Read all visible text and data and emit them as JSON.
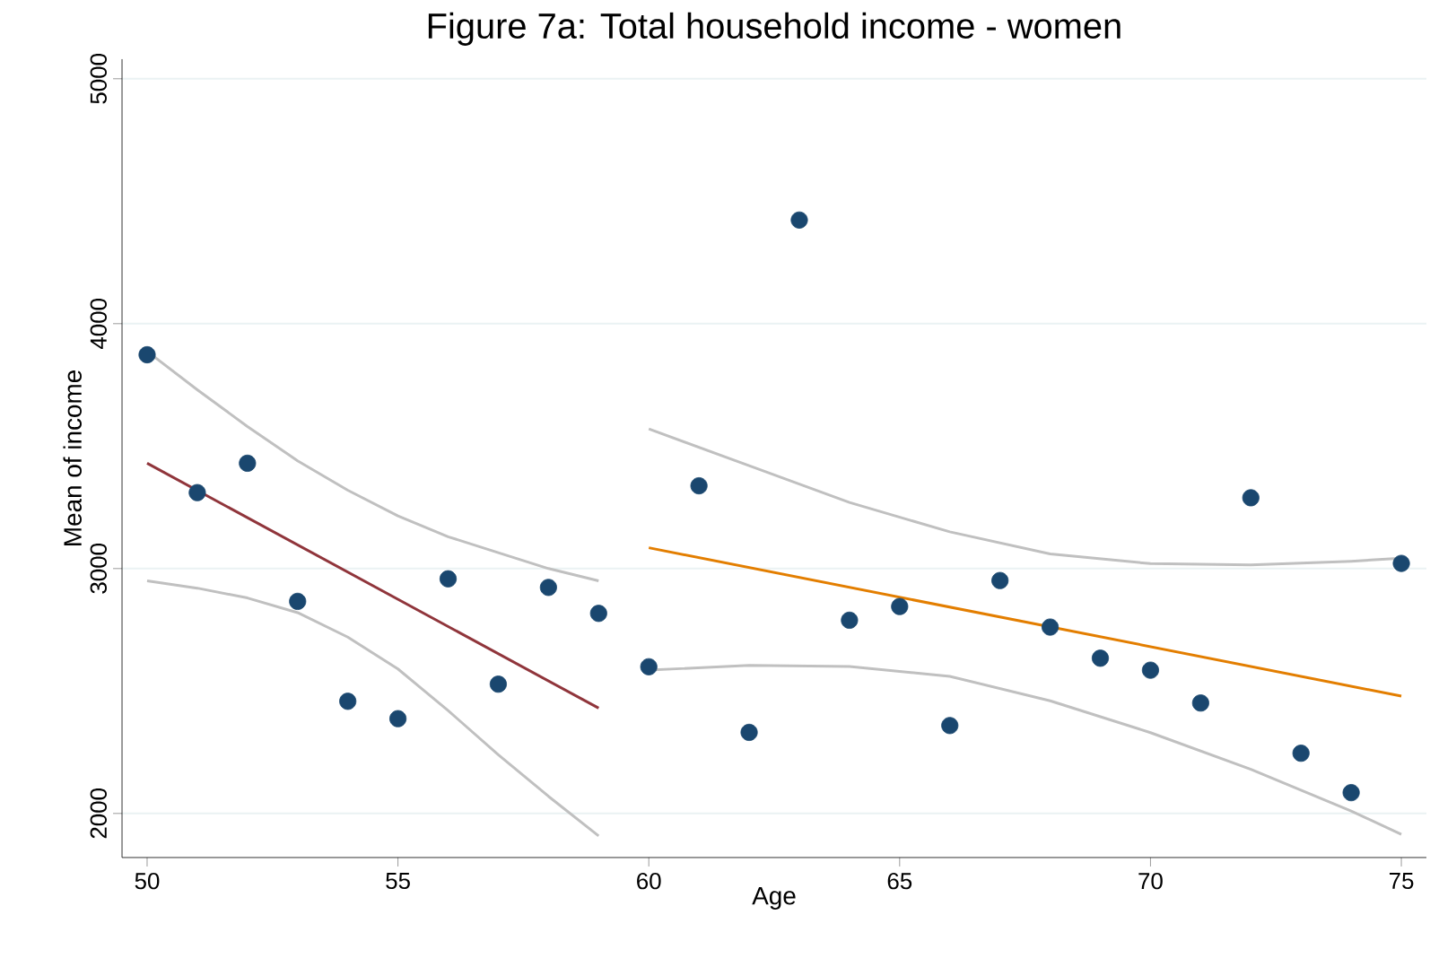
{
  "chart_data": {
    "type": "scatter",
    "title": "Figure 7a: Total household income - women",
    "xlabel": "Age",
    "ylabel": "Mean of income",
    "xlim": [
      49.5,
      75.5
    ],
    "xticks": [
      50,
      55,
      60,
      65,
      70,
      75
    ],
    "ylim": [
      1820,
      5080
    ],
    "yticks": [
      2000,
      3000,
      4000,
      5000
    ],
    "grid": "y",
    "series": [
      {
        "type": "line",
        "color": "#c0c0c0",
        "x": [
          50,
          51,
          52,
          53,
          54,
          55,
          56,
          57,
          58,
          59
        ],
        "values": [
          3887,
          3730,
          3580,
          3440,
          3320,
          3215,
          3130,
          3065,
          3000,
          2950
        ]
      },
      {
        "type": "line",
        "color": "#c0c0c0",
        "x": [
          50,
          51,
          52,
          53,
          54,
          55,
          56,
          57,
          58,
          59
        ],
        "values": [
          2950,
          2920,
          2880,
          2820,
          2720,
          2590,
          2420,
          2240,
          2070,
          1908
        ]
      },
      {
        "type": "line",
        "color": "#c0c0c0",
        "x": [
          60,
          62,
          64,
          66,
          68,
          70,
          72,
          74,
          75
        ],
        "values": [
          3570,
          3420,
          3270,
          3150,
          3060,
          3020,
          3015,
          3030,
          3042
        ]
      },
      {
        "type": "line",
        "color": "#c0c0c0",
        "x": [
          60,
          62,
          64,
          66,
          68,
          70,
          72,
          74,
          75
        ],
        "values": [
          2585,
          2605,
          2600,
          2560,
          2460,
          2330,
          2180,
          2010,
          1915
        ]
      },
      {
        "type": "line",
        "color": "#90353b",
        "x": [
          50,
          59
        ],
        "values": [
          3430,
          2430
        ]
      },
      {
        "type": "line",
        "color": "#e37e00",
        "x": [
          60,
          75
        ],
        "values": [
          3085,
          2479
        ]
      },
      {
        "color": "#1a476f",
        "marker": "circle",
        "x": [
          50,
          51,
          52,
          53,
          54,
          55,
          56,
          57,
          58,
          59,
          60,
          61,
          62,
          63,
          64,
          65,
          66,
          67,
          68,
          69,
          70,
          71,
          72,
          73,
          74,
          75
        ],
        "values": [
          3873,
          3310,
          3430,
          2866,
          2458,
          2387,
          2958,
          2528,
          2923,
          2817,
          2599,
          3338,
          2331,
          4423,
          2789,
          2845,
          2359,
          2951,
          2761,
          2634,
          2585,
          2451,
          3289,
          2246,
          2085,
          3021
        ]
      }
    ]
  }
}
